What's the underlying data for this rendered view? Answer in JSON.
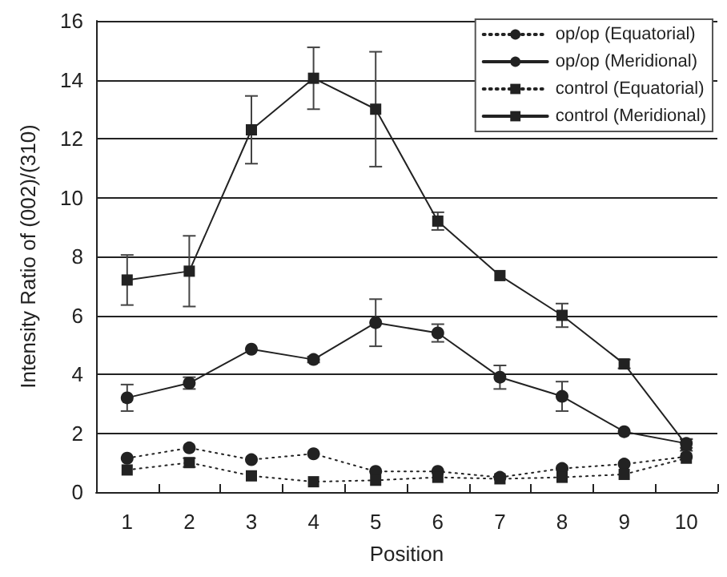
{
  "chart_data": {
    "type": "line",
    "xlabel": "Position",
    "ylabel": "Intensity Ratio of (002)/(310)",
    "categories": [
      "1",
      "2",
      "3",
      "4",
      "5",
      "6",
      "7",
      "8",
      "9",
      "10"
    ],
    "ylim": [
      0,
      16
    ],
    "yticks": [
      0,
      2,
      4,
      6,
      8,
      10,
      12,
      14,
      16
    ],
    "grid": "y",
    "legend": "top right",
    "series": [
      {
        "name": "op/op (Equatorial)",
        "color": "#222222",
        "marker": "circle",
        "line_style": "dotted",
        "values": [
          1.15,
          1.5,
          1.1,
          1.3,
          0.7,
          0.7,
          0.5,
          0.8,
          0.95,
          1.2
        ]
      },
      {
        "name": "op/op (Meridional)",
        "color": "#222222",
        "marker": "circle",
        "line_style": "solid",
        "values": [
          3.2,
          3.7,
          4.85,
          4.5,
          5.75,
          5.4,
          3.9,
          3.25,
          2.05,
          1.65
        ],
        "errors": [
          0.45,
          0.2,
          null,
          0.1,
          0.8,
          0.3,
          0.4,
          0.5,
          null,
          0.15
        ]
      },
      {
        "name": "control (Equatorial)",
        "color": "#222222",
        "marker": "square",
        "line_style": "dotted",
        "values": [
          0.75,
          1.0,
          0.55,
          0.35,
          0.4,
          0.5,
          0.45,
          0.5,
          0.6,
          1.15
        ],
        "errors": [
          null,
          0.15,
          null,
          null,
          null,
          null,
          null,
          null,
          null,
          null
        ]
      },
      {
        "name": "control (Meridional)",
        "color": "#222222",
        "marker": "square",
        "line_style": "solid",
        "values": [
          7.2,
          7.5,
          12.3,
          14.05,
          13.0,
          9.2,
          7.35,
          6.0,
          4.35,
          1.6
        ],
        "errors": [
          0.85,
          1.2,
          1.15,
          1.05,
          1.95,
          0.3,
          null,
          0.4,
          0.15,
          0.2
        ]
      }
    ]
  }
}
